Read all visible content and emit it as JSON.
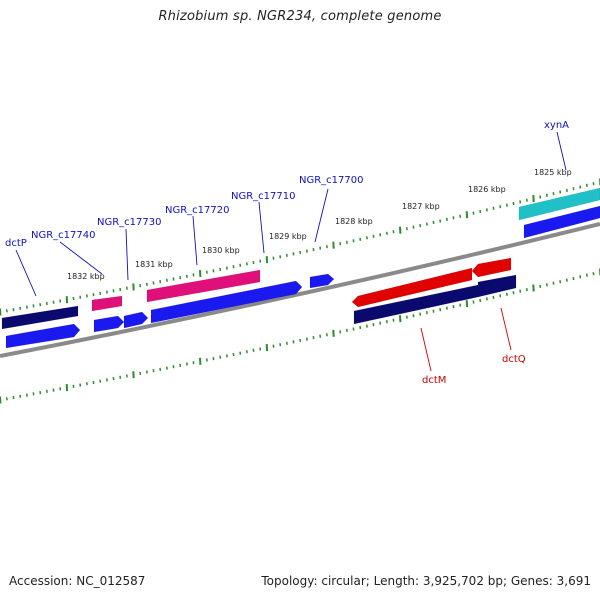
{
  "title": "Rhizobium sp. NGR234, complete genome",
  "accession_text": "Accession: NC_012587",
  "topology_text": "Topology: circular; Length: 3,925,702 bp; Genes: 3,691",
  "colors": {
    "backbone": "#8a8a8a",
    "ticks": "#2e8b2e",
    "forward_label": "#1010c0",
    "reverse_label": "#cc0000",
    "navy": "#0a0a6e",
    "blue": "#1a1af0",
    "pink": "#e0107a",
    "red": "#e00000",
    "cyan": "#20c0c8"
  },
  "tick_labels": [
    "1832 kbp",
    "1831 kbp",
    "1830 kbp",
    "1829 kbp",
    "1828 kbp",
    "1827 kbp",
    "1826 kbp",
    "1825 kbp"
  ],
  "forward_gene_labels": [
    "dctP",
    "NGR_c17740",
    "NGR_c17730",
    "NGR_c17720",
    "NGR_c17710",
    "NGR_c17700",
    "xynA"
  ],
  "reverse_gene_labels": [
    "dctM",
    "dctQ"
  ]
}
